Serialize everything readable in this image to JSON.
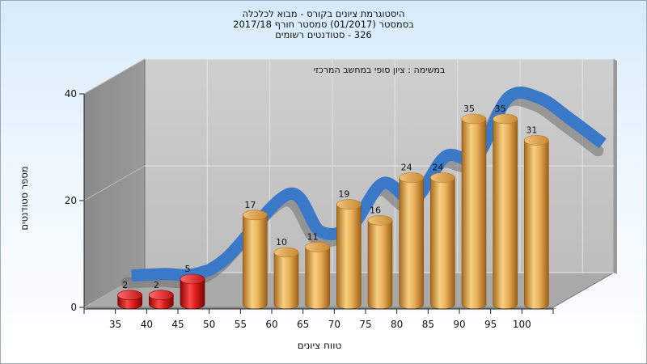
{
  "chart_data": {
    "type": "bar",
    "title_lines": [
      "היסטוגרמת ציונים בקורס - מבוא לכלכלה",
      "בסמסטר  (01/2017)  סמסטר חורף  2017/18",
      "326 - סטודנטים רשומים"
    ],
    "annotation": "במשימה : ציון סופי במחשב המרכזי",
    "xlabel": "טווח ציונים",
    "ylabel": "מספר סטודנטים",
    "categories": [
      "35",
      "40",
      "45",
      "50",
      "55",
      "60",
      "65",
      "70",
      "75",
      "80",
      "85",
      "90",
      "95",
      "100"
    ],
    "values": [
      2,
      2,
      5,
      null,
      17,
      10,
      11,
      19,
      16,
      24,
      24,
      35,
      35,
      31
    ],
    "bar_colors": [
      "red",
      "red",
      "red",
      null,
      "gold",
      "gold",
      "gold",
      "gold",
      "gold",
      "gold",
      "gold",
      "gold",
      "gold",
      "gold"
    ],
    "yticks": [
      0,
      20,
      40
    ],
    "ylim": [
      0,
      40
    ],
    "trend_line": true,
    "colors": {
      "fail": "#e01c1c",
      "pass": "#e8a94a",
      "trend": "#3a78c8"
    }
  }
}
